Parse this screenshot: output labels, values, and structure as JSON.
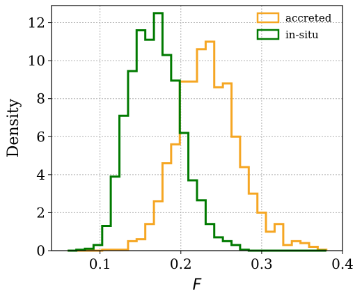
{
  "chart_data": {
    "type": "histogram-step",
    "xlabel": "F",
    "ylabel": "Density",
    "xlim": [
      0.04,
      0.4
    ],
    "ylim": [
      0,
      12.9
    ],
    "xticks": [
      0.1,
      0.2,
      0.3,
      0.4
    ],
    "xtick_labels": [
      "0.1",
      "0.2",
      "0.3",
      "0.4"
    ],
    "yticks": [
      0,
      2,
      4,
      6,
      8,
      10,
      12
    ],
    "ytick_labels": [
      "0",
      "2",
      "4",
      "6",
      "8",
      "10",
      "12"
    ],
    "grid": true,
    "legend_position": "top-right",
    "bin_edges": [
      0.06,
      0.0707,
      0.0813,
      0.092,
      0.1027,
      0.1133,
      0.124,
      0.1347,
      0.1453,
      0.156,
      0.1667,
      0.1773,
      0.188,
      0.1987,
      0.2093,
      0.22,
      0.2307,
      0.2413,
      0.252,
      0.2627,
      0.2733,
      0.284,
      0.2947,
      0.3053,
      0.316,
      0.3267,
      0.3373,
      0.348,
      0.3587,
      0.3693,
      0.38
    ],
    "series": [
      {
        "name": "accreted",
        "color": "#f5a623",
        "values": [
          0,
          0,
          0,
          0,
          0.05,
          0.05,
          0.05,
          0.5,
          0.6,
          1.4,
          2.6,
          4.6,
          5.6,
          8.9,
          8.9,
          10.6,
          11.0,
          8.6,
          8.8,
          6.0,
          4.4,
          3.0,
          2.0,
          1.0,
          1.4,
          0.3,
          0.5,
          0.4,
          0.2,
          0.05
        ]
      },
      {
        "name": "in-situ",
        "color": "#007a00",
        "values": [
          0,
          0.05,
          0.1,
          0.3,
          1.3,
          3.9,
          7.1,
          9.45,
          11.6,
          11.1,
          12.5,
          10.3,
          8.95,
          6.2,
          3.7,
          2.65,
          1.4,
          0.7,
          0.5,
          0.3,
          0.05,
          0,
          0,
          0,
          0,
          0,
          0,
          0,
          0,
          0
        ]
      }
    ]
  }
}
